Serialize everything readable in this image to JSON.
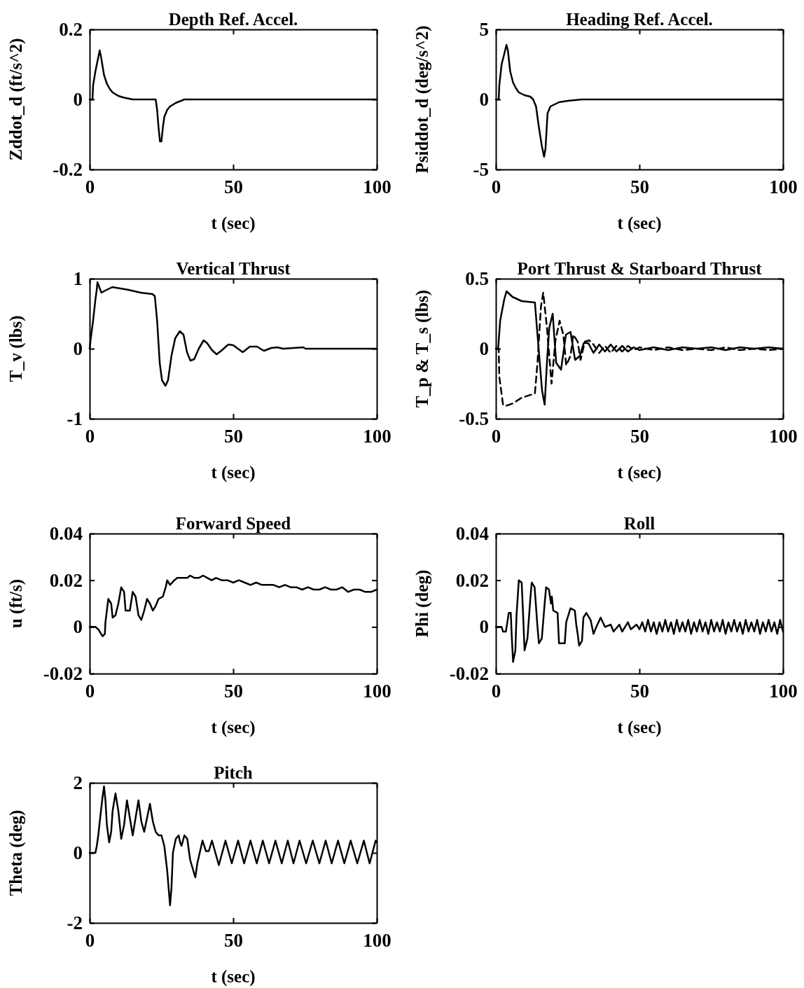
{
  "chart_data": [
    {
      "type": "line",
      "title": "Depth Ref. Accel.",
      "xlabel": "t (sec)",
      "ylabel": "Zddot_d (ft/s^2)",
      "xlim": [
        0,
        100
      ],
      "xticks": [
        0,
        50,
        100
      ],
      "ylim": [
        -0.2,
        0.2
      ],
      "yticks": [
        -0.2,
        0,
        0.2
      ],
      "color": "#000000",
      "x": [
        0,
        1,
        1.2,
        2,
        3,
        3.5,
        4,
        5,
        6,
        7,
        8,
        10,
        12,
        15,
        23,
        23.5,
        24,
        24.5,
        25,
        25.5,
        26,
        27,
        28,
        30,
        33,
        100
      ],
      "values": [
        0,
        0,
        0.04,
        0.08,
        0.12,
        0.14,
        0.12,
        0.07,
        0.045,
        0.03,
        0.02,
        0.01,
        0.005,
        0,
        0,
        -0.03,
        -0.08,
        -0.12,
        -0.12,
        -0.08,
        -0.05,
        -0.03,
        -0.02,
        -0.01,
        0,
        0
      ]
    },
    {
      "type": "line",
      "title": "Heading Ref. Accel.",
      "xlabel": "t (sec)",
      "ylabel": "Psiddot_d (deg/s^2)",
      "xlim": [
        0,
        100
      ],
      "xticks": [
        0,
        50,
        100
      ],
      "ylim": [
        -5,
        5
      ],
      "yticks": [
        -5,
        0,
        5
      ],
      "color": "#000000",
      "x": [
        0,
        1,
        1.2,
        2,
        3,
        3.7,
        4.2,
        5,
        6,
        7,
        8,
        10,
        12,
        13,
        14,
        15,
        16,
        16.8,
        17.3,
        18,
        19,
        20,
        22,
        25,
        30,
        100
      ],
      "values": [
        0,
        0,
        1,
        2.5,
        3.3,
        3.9,
        3.5,
        2,
        1.2,
        0.8,
        0.5,
        0.3,
        0.2,
        0,
        -0.5,
        -2,
        -3.3,
        -4.1,
        -3.5,
        -1,
        -0.5,
        -0.4,
        -0.2,
        -0.1,
        0,
        0
      ]
    },
    {
      "type": "line",
      "title": "Vertical Thrust",
      "xlabel": "t (sec)",
      "ylabel": "T_v (lbs)",
      "xlim": [
        0,
        100
      ],
      "xticks": [
        0,
        50,
        100
      ],
      "ylim": [
        -1,
        1
      ],
      "yticks": [
        -1,
        0,
        1
      ],
      "color": "#000000",
      "x": [
        0,
        0.4,
        1.2,
        2,
        2.5,
        2.7,
        4.1,
        5.4,
        7.9,
        13.6,
        17.8,
        21.9,
        22.7,
        23.5,
        24.4,
        25.2,
        26.4,
        27.3,
        28.5,
        29.8,
        31.4,
        32.7,
        33.9,
        35.1,
        36.4,
        38,
        39.7,
        40.9,
        42.6,
        44.2,
        45.8,
        48.3,
        50,
        53.3,
        55.8,
        58.3,
        60.7,
        63.2,
        65.3,
        67.4,
        74.4,
        75.2,
        100
      ],
      "values": [
        0,
        0.15,
        0.4,
        0.7,
        0.85,
        0.95,
        0.8,
        0.83,
        0.88,
        0.84,
        0.8,
        0.78,
        0.75,
        0.4,
        -0.2,
        -0.45,
        -0.53,
        -0.45,
        -0.1,
        0.15,
        0.25,
        0.2,
        -0.05,
        -0.17,
        -0.15,
        0,
        0.12,
        0.08,
        -0.02,
        -0.08,
        -0.03,
        0.06,
        0.05,
        -0.05,
        0.03,
        0.03,
        -0.03,
        0.01,
        0.02,
        0,
        0.02,
        0,
        0
      ]
    },
    {
      "type": "line",
      "title": "Port Thrust & Starboard Thrust",
      "xlabel": "t (sec)",
      "ylabel": "T_p & T_s (lbs)",
      "xlim": [
        0,
        100
      ],
      "xticks": [
        0,
        50,
        100
      ],
      "ylim": [
        -0.5,
        0.5
      ],
      "yticks": [
        -0.5,
        0,
        0.5
      ],
      "series": [
        {
          "color": "#000000",
          "line_style": "solid",
          "x": [
            0,
            0.8,
            1.5,
            2.9,
            3.7,
            5.8,
            9,
            13.6,
            14.5,
            15.3,
            16.1,
            17,
            17.8,
            18.6,
            19.8,
            21,
            22.7,
            24.4,
            26,
            27.6,
            29.3,
            30.6,
            32.2,
            34,
            36,
            38,
            40,
            42,
            44,
            46,
            48,
            50,
            55,
            60,
            65,
            70,
            75,
            80,
            85,
            90,
            95,
            100
          ],
          "values": [
            0,
            0,
            0.2,
            0.35,
            0.41,
            0.37,
            0.34,
            0.33,
            0.1,
            -0.1,
            -0.3,
            -0.4,
            -0.1,
            0.15,
            0.25,
            -0.1,
            -0.15,
            0.1,
            0.12,
            -0.08,
            -0.05,
            0.04,
            0.04,
            -0.03,
            0.03,
            -0.02,
            0.03,
            -0.02,
            0.02,
            -0.02,
            0.01,
            -0.01,
            0.01,
            -0.01,
            0.01,
            0,
            0.01,
            -0.01,
            0.01,
            0,
            0.01,
            0
          ]
        },
        {
          "color": "#000000",
          "line_style": "dashed",
          "x": [
            0,
            1,
            1.2,
            2.5,
            3.3,
            6,
            9,
            13.6,
            14.5,
            15.7,
            16.5,
            17.8,
            19.4,
            20.7,
            22.2,
            23.5,
            24.5,
            26,
            27,
            28.5,
            29.5,
            31,
            32.5,
            34,
            36,
            38,
            40,
            42,
            44,
            46,
            48,
            50,
            55,
            60,
            65,
            70,
            75,
            80,
            85,
            90,
            95,
            100
          ],
          "values": [
            0,
            0,
            -0.2,
            -0.4,
            -0.41,
            -0.39,
            -0.35,
            -0.32,
            -0.1,
            0.3,
            0.4,
            0.15,
            -0.25,
            0.05,
            0.2,
            0.1,
            -0.12,
            -0.05,
            0.1,
            0.05,
            -0.08,
            0.05,
            0.06,
            0.03,
            -0.03,
            0.02,
            -0.03,
            0.02,
            -0.02,
            0.02,
            -0.01,
            0.01,
            -0.01,
            0.01,
            -0.01,
            0,
            -0.01,
            0.01,
            -0.01,
            0,
            -0.01,
            0
          ]
        }
      ]
    },
    {
      "type": "line",
      "title": "Forward Speed",
      "xlabel": "t (sec)",
      "ylabel": "u (ft/s)",
      "xlim": [
        0,
        100
      ],
      "xticks": [
        0,
        50,
        100
      ],
      "ylim": [
        -0.02,
        0.04
      ],
      "yticks": [
        -0.02,
        0,
        0.02,
        0.04
      ],
      "color": "#000000",
      "x": [
        0,
        2,
        3,
        4.5,
        5.3,
        5.5,
        6,
        6.5,
        7.5,
        8,
        9,
        10,
        11,
        12,
        12.5,
        14,
        15,
        16,
        17,
        18,
        19,
        20,
        21,
        22,
        23,
        24,
        25.5,
        26.5,
        27,
        28,
        29.5,
        30.5,
        32,
        34,
        35,
        36.5,
        38,
        39.5,
        41,
        42.5,
        44,
        46,
        48,
        50,
        52,
        54,
        56,
        58,
        60,
        62,
        64,
        66,
        68,
        70,
        72,
        74,
        76,
        78,
        80,
        82,
        84,
        86,
        88,
        90,
        92,
        94,
        96,
        98,
        100
      ],
      "values": [
        0,
        0,
        -0.001,
        -0.004,
        -0.003,
        0.002,
        0.007,
        0.012,
        0.01,
        0.004,
        0.005,
        0.01,
        0.017,
        0.015,
        0.007,
        0.007,
        0.015,
        0.013,
        0.005,
        0.003,
        0.007,
        0.012,
        0.01,
        0.007,
        0.009,
        0.012,
        0.013,
        0.017,
        0.02,
        0.018,
        0.02,
        0.021,
        0.021,
        0.021,
        0.022,
        0.021,
        0.021,
        0.022,
        0.021,
        0.02,
        0.021,
        0.02,
        0.02,
        0.019,
        0.02,
        0.019,
        0.018,
        0.019,
        0.018,
        0.018,
        0.018,
        0.017,
        0.018,
        0.017,
        0.017,
        0.016,
        0.017,
        0.016,
        0.016,
        0.017,
        0.016,
        0.016,
        0.017,
        0.015,
        0.016,
        0.016,
        0.015,
        0.015,
        0.016
      ]
    },
    {
      "type": "line",
      "title": "Roll",
      "xlabel": "t (sec)",
      "ylabel": "Phi (deg)",
      "xlim": [
        0,
        100
      ],
      "xticks": [
        0,
        50,
        100
      ],
      "ylim": [
        -0.02,
        0.04
      ],
      "yticks": [
        -0.02,
        0,
        0.02,
        0.04
      ],
      "color": "#000000",
      "x": [
        0,
        2,
        2.5,
        3.5,
        4,
        4.5,
        5.2,
        5.5,
        6,
        6.8,
        7.2,
        8,
        9,
        9.5,
        10,
        11,
        12,
        12.5,
        13.5,
        14.5,
        15,
        16,
        17,
        17.5,
        18.5,
        19.2,
        19.5,
        20,
        21.5,
        22,
        24,
        24.5,
        25,
        26,
        27.5,
        28,
        28.5,
        29,
        30,
        30.5,
        31.5,
        33,
        34,
        35,
        36.5,
        38,
        40,
        41,
        43,
        44,
        46,
        47,
        49,
        50,
        51,
        52,
        53,
        54,
        55,
        56,
        57,
        58,
        59,
        60,
        61,
        62,
        63,
        64,
        65,
        66,
        67,
        68,
        69,
        70,
        71,
        72,
        73,
        74,
        75,
        76,
        77,
        78,
        79,
        80,
        81,
        82,
        83,
        84,
        85,
        86,
        87,
        88,
        89,
        90,
        91,
        92,
        93,
        94,
        95,
        96,
        97,
        98,
        99,
        100
      ],
      "values": [
        0,
        0,
        -0.002,
        -0.002,
        0.002,
        0.006,
        0.006,
        -0.003,
        -0.015,
        -0.01,
        0.005,
        0.02,
        0.019,
        0.005,
        -0.01,
        -0.005,
        0.012,
        0.019,
        0.017,
        0,
        -0.007,
        -0.005,
        0.01,
        0.017,
        0.016,
        0.01,
        0.013,
        0.007,
        0.006,
        -0.007,
        -0.007,
        0.002,
        0.004,
        0.008,
        0.007,
        0.001,
        -0.003,
        -0.008,
        -0.006,
        0.004,
        0.006,
        0.003,
        -0.003,
        0,
        0.004,
        0,
        0.001,
        -0.002,
        0.001,
        -0.002,
        0.002,
        -0.001,
        0.001,
        -0.001,
        0.002,
        -0.002,
        0.003,
        -0.002,
        0.002,
        -0.003,
        0.002,
        -0.002,
        0.003,
        -0.002,
        0.002,
        -0.003,
        0.003,
        -0.002,
        0.002,
        -0.002,
        0.003,
        -0.003,
        0.002,
        -0.002,
        0.003,
        -0.002,
        0.002,
        -0.003,
        0.003,
        -0.002,
        0.002,
        -0.002,
        0.003,
        -0.003,
        0.002,
        -0.002,
        0.003,
        -0.002,
        0.002,
        -0.003,
        0.003,
        -0.002,
        0.002,
        -0.002,
        0.003,
        -0.003,
        0.002,
        -0.002,
        0.003,
        -0.002,
        0.002,
        -0.003,
        0.003,
        -0.002
      ]
    },
    {
      "type": "line",
      "title": "Pitch",
      "xlabel": "t (sec)",
      "ylabel": "Theta (deg)",
      "xlim": [
        0,
        100
      ],
      "xticks": [
        0,
        50,
        100
      ],
      "ylim": [
        -2,
        2
      ],
      "yticks": [
        -2,
        0,
        2
      ],
      "color": "#000000",
      "x": [
        0,
        2,
        2.5,
        3,
        3.8,
        4.5,
        5,
        5.5,
        6,
        6.8,
        7.5,
        8,
        9,
        10,
        11,
        12,
        13,
        14,
        15,
        16,
        17,
        18,
        19,
        20,
        21,
        22,
        23,
        24,
        25,
        26,
        27,
        27.5,
        28,
        28.5,
        29,
        30,
        31,
        31.5,
        32,
        33,
        34,
        35,
        36.8,
        37.5,
        39.3,
        40.5,
        41.5,
        42.6,
        45,
        47.3,
        49.5,
        51.7,
        53.8,
        56,
        58.2,
        60.3,
        62.5,
        64.7,
        66.9,
        69,
        71,
        73.1,
        75.4,
        77.7,
        80,
        82.2,
        84.3,
        86.5,
        88.7,
        90.9,
        93.2,
        95.5,
        97.5,
        99.6,
        100
      ],
      "values": [
        0,
        0,
        0.2,
        0.5,
        1.1,
        1.6,
        1.9,
        1.5,
        0.8,
        0.3,
        0.6,
        1.2,
        1.7,
        1.2,
        0.4,
        0.8,
        1.5,
        1,
        0.5,
        1,
        1.5,
        0.9,
        0.6,
        1,
        1.4,
        0.9,
        0.6,
        0.5,
        0.5,
        0.2,
        -0.5,
        -1,
        -1.5,
        -1,
        0,
        0.4,
        0.5,
        0.3,
        0.2,
        0.5,
        0.4,
        -0.2,
        -0.7,
        -0.3,
        0.35,
        0.05,
        0.05,
        0.35,
        -0.35,
        0.35,
        -0.3,
        0.35,
        -0.3,
        0.35,
        -0.3,
        0.35,
        -0.3,
        0.35,
        -0.3,
        0.35,
        -0.3,
        0.35,
        -0.3,
        0.35,
        -0.3,
        0.35,
        -0.3,
        0.35,
        -0.3,
        0.35,
        -0.3,
        0.35,
        -0.3,
        0.35,
        0.3
      ]
    }
  ]
}
